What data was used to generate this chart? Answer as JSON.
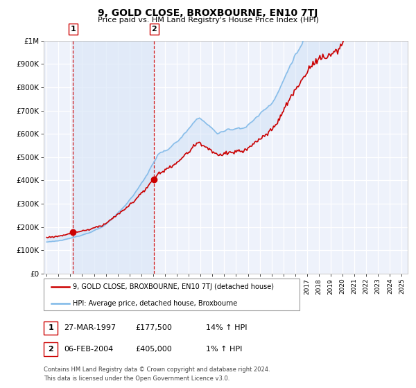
{
  "title": "9, GOLD CLOSE, BROXBOURNE, EN10 7TJ",
  "subtitle": "Price paid vs. HM Land Registry's House Price Index (HPI)",
  "ylim": [
    0,
    1000000
  ],
  "xlim_start": 1994.75,
  "xlim_end": 2025.5,
  "bg_color": "#eef2fb",
  "grid_color": "#ffffff",
  "hpi_color": "#7db8e8",
  "hpi_fill_color": "#c8dcf5",
  "price_color": "#cc0000",
  "sale1_x": 1997.23,
  "sale1_y": 177500,
  "sale2_x": 2004.09,
  "sale2_y": 405000,
  "vline_color": "#cc0000",
  "legend_label1": "9, GOLD CLOSE, BROXBOURNE, EN10 7TJ (detached house)",
  "legend_label2": "HPI: Average price, detached house, Broxbourne",
  "annotation1_date": "27-MAR-1997",
  "annotation1_price": "£177,500",
  "annotation1_hpi": "14% ↑ HPI",
  "annotation2_date": "06-FEB-2004",
  "annotation2_price": "£405,000",
  "annotation2_hpi": "1% ↑ HPI",
  "footer": "Contains HM Land Registry data © Crown copyright and database right 2024.\nThis data is licensed under the Open Government Licence v3.0.",
  "yticks": [
    0,
    100000,
    200000,
    300000,
    400000,
    500000,
    600000,
    700000,
    800000,
    900000,
    1000000
  ],
  "ytick_labels": [
    "£0",
    "£100K",
    "£200K",
    "£300K",
    "£400K",
    "£500K",
    "£600K",
    "£700K",
    "£800K",
    "£900K",
    "£1M"
  ]
}
